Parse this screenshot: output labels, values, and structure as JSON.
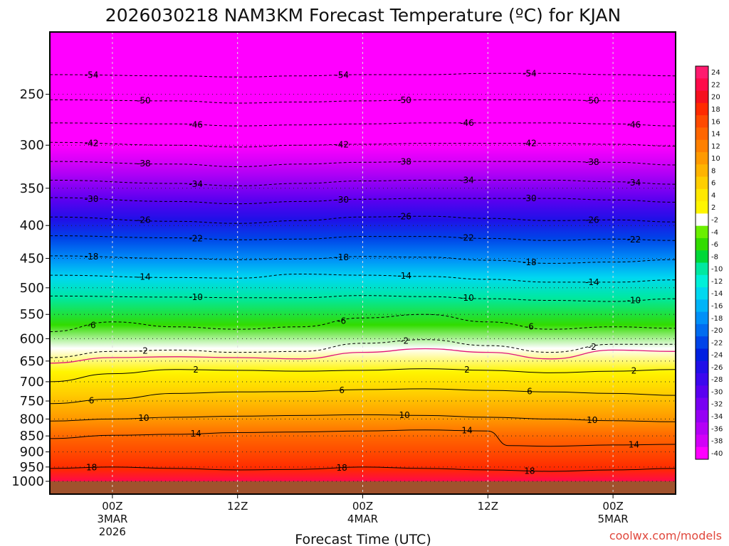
{
  "title": "2026030218 NAM3KM Forecast Temperature (ºC) for KJAN",
  "credit": "coolwx.com/models",
  "credit_color": "#e0473c",
  "chart_data": {
    "type": "heatmap",
    "title": "2026030218 NAM3KM Forecast Temperature (ºC) for KJAN",
    "xlabel": "Forecast Time (UTC)",
    "ylabel": "",
    "xlim": [
      -6,
      54
    ],
    "ylim": [
      1000,
      200
    ],
    "y_scale": "log",
    "grid": true,
    "pressure_ticks": [
      250,
      300,
      350,
      400,
      450,
      500,
      550,
      600,
      650,
      700,
      750,
      800,
      850,
      900,
      950,
      1000
    ],
    "x_ticks": [
      {
        "x": 0,
        "lines": [
          "00Z",
          "3MAR",
          "2026"
        ]
      },
      {
        "x": 12,
        "lines": [
          "12Z"
        ]
      },
      {
        "x": 24,
        "lines": [
          "00Z",
          "4MAR"
        ]
      },
      {
        "x": 36,
        "lines": [
          "12Z"
        ]
      },
      {
        "x": 48,
        "lines": [
          "00Z",
          "5MAR"
        ]
      }
    ],
    "contours": [
      {
        "value": -54,
        "label": "-54",
        "points": [
          [
            -6,
            233
          ],
          [
            6,
            234
          ],
          [
            12,
            235
          ],
          [
            18,
            234
          ],
          [
            24,
            233
          ],
          [
            30,
            233
          ],
          [
            36,
            232
          ],
          [
            42,
            232
          ],
          [
            48,
            233
          ],
          [
            54,
            234
          ]
        ]
      },
      {
        "value": -50,
        "label": "-50",
        "points": [
          [
            -6,
            255
          ],
          [
            6,
            256
          ],
          [
            12,
            258
          ],
          [
            18,
            257
          ],
          [
            24,
            256
          ],
          [
            30,
            255
          ],
          [
            36,
            255
          ],
          [
            42,
            255
          ],
          [
            48,
            256
          ],
          [
            54,
            257
          ]
        ]
      },
      {
        "value": -46,
        "label": "-46",
        "points": [
          [
            -6,
            277
          ],
          [
            6,
            278
          ],
          [
            12,
            280
          ],
          [
            18,
            279
          ],
          [
            24,
            278
          ],
          [
            30,
            277
          ],
          [
            36,
            277
          ],
          [
            42,
            277
          ],
          [
            48,
            278
          ],
          [
            54,
            280
          ]
        ]
      },
      {
        "value": -42,
        "label": "-42",
        "points": [
          [
            -6,
            297
          ],
          [
            6,
            300
          ],
          [
            12,
            302
          ],
          [
            18,
            300
          ],
          [
            24,
            299
          ],
          [
            30,
            298
          ],
          [
            36,
            298
          ],
          [
            42,
            298
          ],
          [
            48,
            299
          ],
          [
            54,
            301
          ]
        ]
      },
      {
        "value": -38,
        "label": "-38",
        "points": [
          [
            -6,
            318
          ],
          [
            6,
            321
          ],
          [
            12,
            324
          ],
          [
            18,
            321
          ],
          [
            24,
            319
          ],
          [
            30,
            318
          ],
          [
            36,
            318
          ],
          [
            42,
            318
          ],
          [
            48,
            319
          ],
          [
            54,
            322
          ]
        ]
      },
      {
        "value": -34,
        "label": "-34",
        "points": [
          [
            -6,
            340
          ],
          [
            6,
            344
          ],
          [
            12,
            347
          ],
          [
            18,
            344
          ],
          [
            24,
            341
          ],
          [
            30,
            340
          ],
          [
            36,
            340
          ],
          [
            42,
            340
          ],
          [
            48,
            342
          ],
          [
            54,
            345
          ]
        ]
      },
      {
        "value": -30,
        "label": "-30",
        "points": [
          [
            -6,
            362
          ],
          [
            6,
            367
          ],
          [
            12,
            370
          ],
          [
            18,
            367
          ],
          [
            24,
            364
          ],
          [
            30,
            363
          ],
          [
            36,
            363
          ],
          [
            42,
            363
          ],
          [
            48,
            365
          ],
          [
            54,
            368
          ]
        ]
      },
      {
        "value": -26,
        "label": "-26",
        "points": [
          [
            -6,
            388
          ],
          [
            6,
            394
          ],
          [
            12,
            397
          ],
          [
            18,
            393
          ],
          [
            24,
            388
          ],
          [
            30,
            387
          ],
          [
            36,
            390
          ],
          [
            42,
            393
          ],
          [
            48,
            392
          ],
          [
            54,
            395
          ]
        ]
      },
      {
        "value": -22,
        "label": "-22",
        "points": [
          [
            -6,
            415
          ],
          [
            6,
            418
          ],
          [
            12,
            421
          ],
          [
            18,
            420
          ],
          [
            24,
            416
          ],
          [
            30,
            416
          ],
          [
            36,
            419
          ],
          [
            42,
            422
          ],
          [
            48,
            420
          ],
          [
            54,
            422
          ]
        ]
      },
      {
        "value": -18,
        "label": "-18",
        "points": [
          [
            -6,
            446
          ],
          [
            6,
            450
          ],
          [
            12,
            452
          ],
          [
            18,
            451
          ],
          [
            24,
            447
          ],
          [
            30,
            448
          ],
          [
            36,
            453
          ],
          [
            42,
            458
          ],
          [
            48,
            456
          ],
          [
            54,
            452
          ]
        ]
      },
      {
        "value": -14,
        "label": "-14",
        "points": [
          [
            -6,
            478
          ],
          [
            6,
            482
          ],
          [
            12,
            483
          ],
          [
            18,
            476
          ],
          [
            24,
            478
          ],
          [
            30,
            480
          ],
          [
            36,
            485
          ],
          [
            42,
            490
          ],
          [
            48,
            490
          ],
          [
            54,
            486
          ]
        ]
      },
      {
        "value": -10,
        "label": "-10",
        "points": [
          [
            -6,
            515
          ],
          [
            6,
            517
          ],
          [
            12,
            518
          ],
          [
            18,
            518
          ],
          [
            24,
            514
          ],
          [
            30,
            516
          ],
          [
            36,
            520
          ],
          [
            42,
            523
          ],
          [
            48,
            525
          ],
          [
            54,
            520
          ]
        ]
      },
      {
        "value": -6,
        "label": "-6",
        "points": [
          [
            -6,
            585
          ],
          [
            0,
            565
          ],
          [
            6,
            575
          ],
          [
            12,
            580
          ],
          [
            18,
            575
          ],
          [
            24,
            557
          ],
          [
            30,
            550
          ],
          [
            36,
            565
          ],
          [
            42,
            580
          ],
          [
            48,
            575
          ],
          [
            54,
            578
          ]
        ]
      },
      {
        "value": -2,
        "label": "-2",
        "points": [
          [
            -6,
            642
          ],
          [
            0,
            628
          ],
          [
            6,
            625
          ],
          [
            12,
            630
          ],
          [
            18,
            628
          ],
          [
            24,
            610
          ],
          [
            30,
            602
          ],
          [
            36,
            615
          ],
          [
            42,
            630
          ],
          [
            48,
            612
          ],
          [
            54,
            612
          ]
        ]
      },
      {
        "value": 2,
        "label": "2",
        "points": [
          [
            -6,
            700
          ],
          [
            0,
            680
          ],
          [
            6,
            670
          ],
          [
            12,
            672
          ],
          [
            18,
            674
          ],
          [
            24,
            672
          ],
          [
            30,
            668
          ],
          [
            36,
            672
          ],
          [
            42,
            678
          ],
          [
            48,
            674
          ],
          [
            54,
            670
          ]
        ]
      },
      {
        "value": 6,
        "label": "6",
        "points": [
          [
            -6,
            757
          ],
          [
            0,
            745
          ],
          [
            6,
            730
          ],
          [
            12,
            726
          ],
          [
            18,
            725
          ],
          [
            24,
            720
          ],
          [
            30,
            718
          ],
          [
            36,
            722
          ],
          [
            42,
            726
          ],
          [
            48,
            730
          ],
          [
            54,
            735
          ]
        ]
      },
      {
        "value": 10,
        "label": "10",
        "points": [
          [
            -6,
            806
          ],
          [
            0,
            800
          ],
          [
            6,
            795
          ],
          [
            12,
            792
          ],
          [
            18,
            790
          ],
          [
            24,
            788
          ],
          [
            30,
            790
          ],
          [
            36,
            795
          ],
          [
            42,
            800
          ],
          [
            48,
            805
          ],
          [
            54,
            808
          ]
        ]
      },
      {
        "value": 14,
        "label": "14",
        "points": [
          [
            -6,
            858
          ],
          [
            0,
            848
          ],
          [
            6,
            845
          ],
          [
            12,
            840
          ],
          [
            18,
            838
          ],
          [
            24,
            835
          ],
          [
            30,
            832
          ],
          [
            36,
            835
          ],
          [
            38,
            880
          ],
          [
            42,
            882
          ],
          [
            48,
            878
          ],
          [
            54,
            876
          ]
        ]
      },
      {
        "value": 18,
        "label": "18",
        "points": [
          [
            -6,
            955
          ],
          [
            0,
            950
          ],
          [
            6,
            955
          ],
          [
            12,
            960
          ],
          [
            18,
            958
          ],
          [
            24,
            950
          ],
          [
            30,
            955
          ],
          [
            36,
            960
          ],
          [
            42,
            965
          ],
          [
            48,
            960
          ],
          [
            54,
            955
          ]
        ]
      }
    ],
    "freezing_line": {
      "value": 0,
      "points": [
        [
          -6,
          655
        ],
        [
          0,
          642
        ],
        [
          6,
          640
        ],
        [
          12,
          642
        ],
        [
          18,
          645
        ],
        [
          24,
          630
        ],
        [
          30,
          622
        ],
        [
          36,
          630
        ],
        [
          42,
          645
        ],
        [
          48,
          625
        ],
        [
          54,
          628
        ]
      ]
    },
    "colorbar_levels": [
      "24",
      "22",
      "20",
      "18",
      "16",
      "14",
      "12",
      "10",
      "8",
      "6",
      "4",
      "2",
      "-2",
      "-4",
      "-6",
      "-8",
      "-10",
      "-12",
      "-14",
      "-16",
      "-18",
      "-20",
      "-22",
      "-24",
      "-26",
      "-28",
      "-30",
      "-32",
      "-34",
      "-36",
      "-38",
      "-40"
    ],
    "colorbar_colors": [
      "#ff1a6e",
      "#ff0a4a",
      "#f5101e",
      "#ff2a00",
      "#ff4a00",
      "#ff6600",
      "#ff8000",
      "#ff9a00",
      "#ffb400",
      "#ffce00",
      "#ffe800",
      "#fff500",
      "#ffffff",
      "#6aef00",
      "#32dc00",
      "#00d838",
      "#00e8a0",
      "#00f0d8",
      "#00d8f0",
      "#00b4f8",
      "#0090f8",
      "#006cf0",
      "#0044e8",
      "#0020e0",
      "#2010e8",
      "#3c08ee",
      "#5a00f0",
      "#7800f2",
      "#9600f4",
      "#b400f6",
      "#d200f8",
      "#ff00ff"
    ]
  }
}
